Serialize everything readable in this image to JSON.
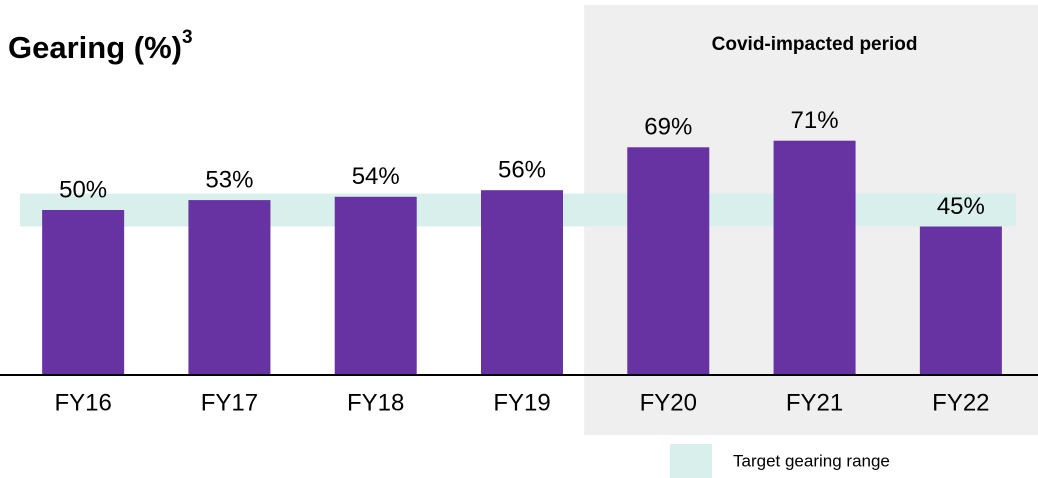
{
  "chart_data": {
    "type": "bar",
    "title": "Gearing (%)",
    "title_superscript": "3",
    "categories": [
      "FY16",
      "FY17",
      "FY18",
      "FY19",
      "FY20",
      "FY21",
      "FY22"
    ],
    "values": [
      50,
      53,
      54,
      56,
      69,
      71,
      45
    ],
    "value_labels": [
      "50%",
      "53%",
      "54%",
      "56%",
      "69%",
      "71%",
      "45%"
    ],
    "color": "#6732a2",
    "ylim": [
      0,
      100
    ],
    "target_range": {
      "label": "Target gearing range",
      "range": [
        45,
        55
      ],
      "color": "#d8efec"
    },
    "highlight": {
      "label": "Covid-impacted period",
      "span": [
        4,
        6
      ],
      "color": "#efefef"
    }
  }
}
